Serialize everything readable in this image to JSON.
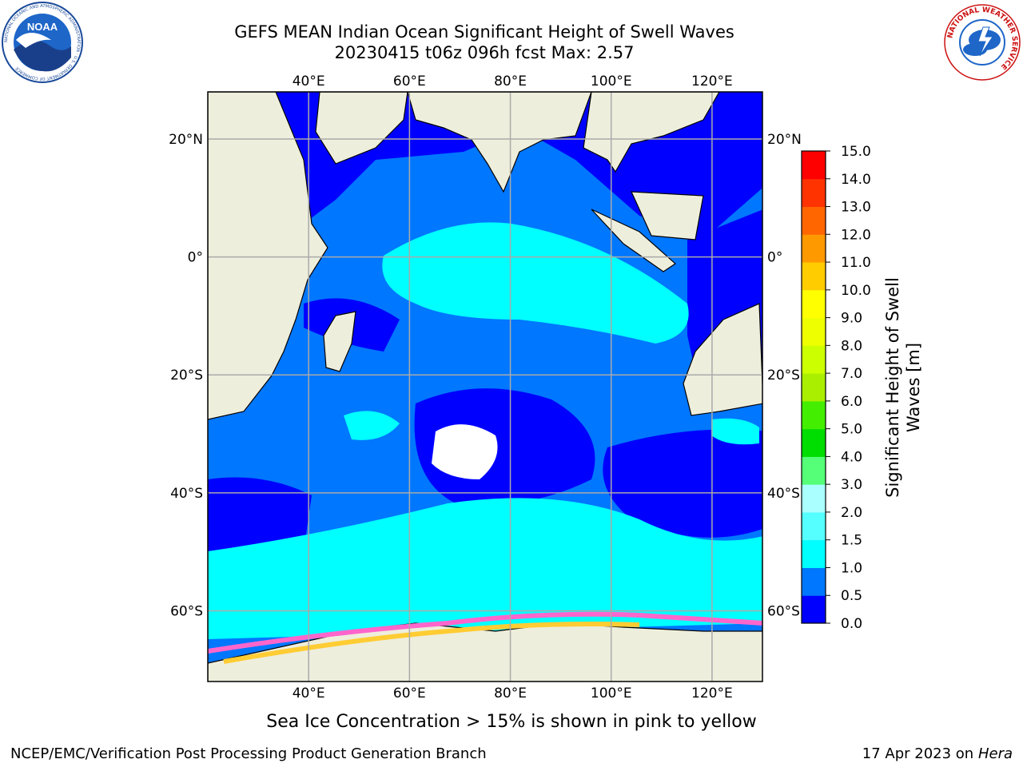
{
  "header": {
    "title_line1": "GEFS MEAN Indian Ocean Significant Height of Swell Waves",
    "title_line2": "20230415 t06z 096h fcst   Max: 2.57"
  },
  "logos": {
    "left": "NOAA",
    "left_ring_text": "NATIONAL OCEANIC AND ATMOSPHERIC ADMINISTRATION · U.S. DEPARTMENT OF COMMERCE",
    "right_ring_text": "NATIONAL WEATHER SERVICE"
  },
  "map": {
    "lon_range": [
      20,
      130
    ],
    "lat_range": [
      -72,
      28
    ],
    "lon_ticks": [
      "40°E",
      "60°E",
      "80°E",
      "100°E",
      "120°E"
    ],
    "lat_ticks_left": [
      "20°N",
      "0°",
      "20°S",
      "40°S",
      "60°S"
    ],
    "lat_ticks_right": [
      "20°N",
      "0°",
      "20°S",
      "40°S",
      "60°S"
    ],
    "colors": {
      "land": "#eeeedd",
      "ocean_low": "#0000ff",
      "ocean_mid": "#0077ff",
      "ocean_high": "#00ffff",
      "ice_pink": "#ff66cc",
      "ice_yellow": "#ffcc33"
    }
  },
  "colorbar": {
    "label": "Significant Height of Swell Waves [m]",
    "ticks": [
      "0.0",
      "0.5",
      "1.0",
      "1.5",
      "2.0",
      "3.0",
      "4.0",
      "5.0",
      "6.0",
      "7.0",
      "8.0",
      "9.0",
      "10.0",
      "11.0",
      "12.0",
      "13.0",
      "14.0",
      "15.0"
    ],
    "colors": [
      "#0000ff",
      "#0077ff",
      "#00ffff",
      "#55ffff",
      "#aaffff",
      "#55ff77",
      "#00dd00",
      "#44ee00",
      "#aaee00",
      "#ccff00",
      "#eeff00",
      "#ffff00",
      "#ffcc00",
      "#ff9900",
      "#ff6600",
      "#ff3300",
      "#ff0000"
    ]
  },
  "footer": {
    "note": "Sea Ice Concentration > 15% is shown in pink to yellow",
    "left": "NCEP/EMC/Verification Post Processing Product Generation Branch",
    "right_prefix": "17 Apr 2023 on ",
    "right_machine": "Hera"
  }
}
